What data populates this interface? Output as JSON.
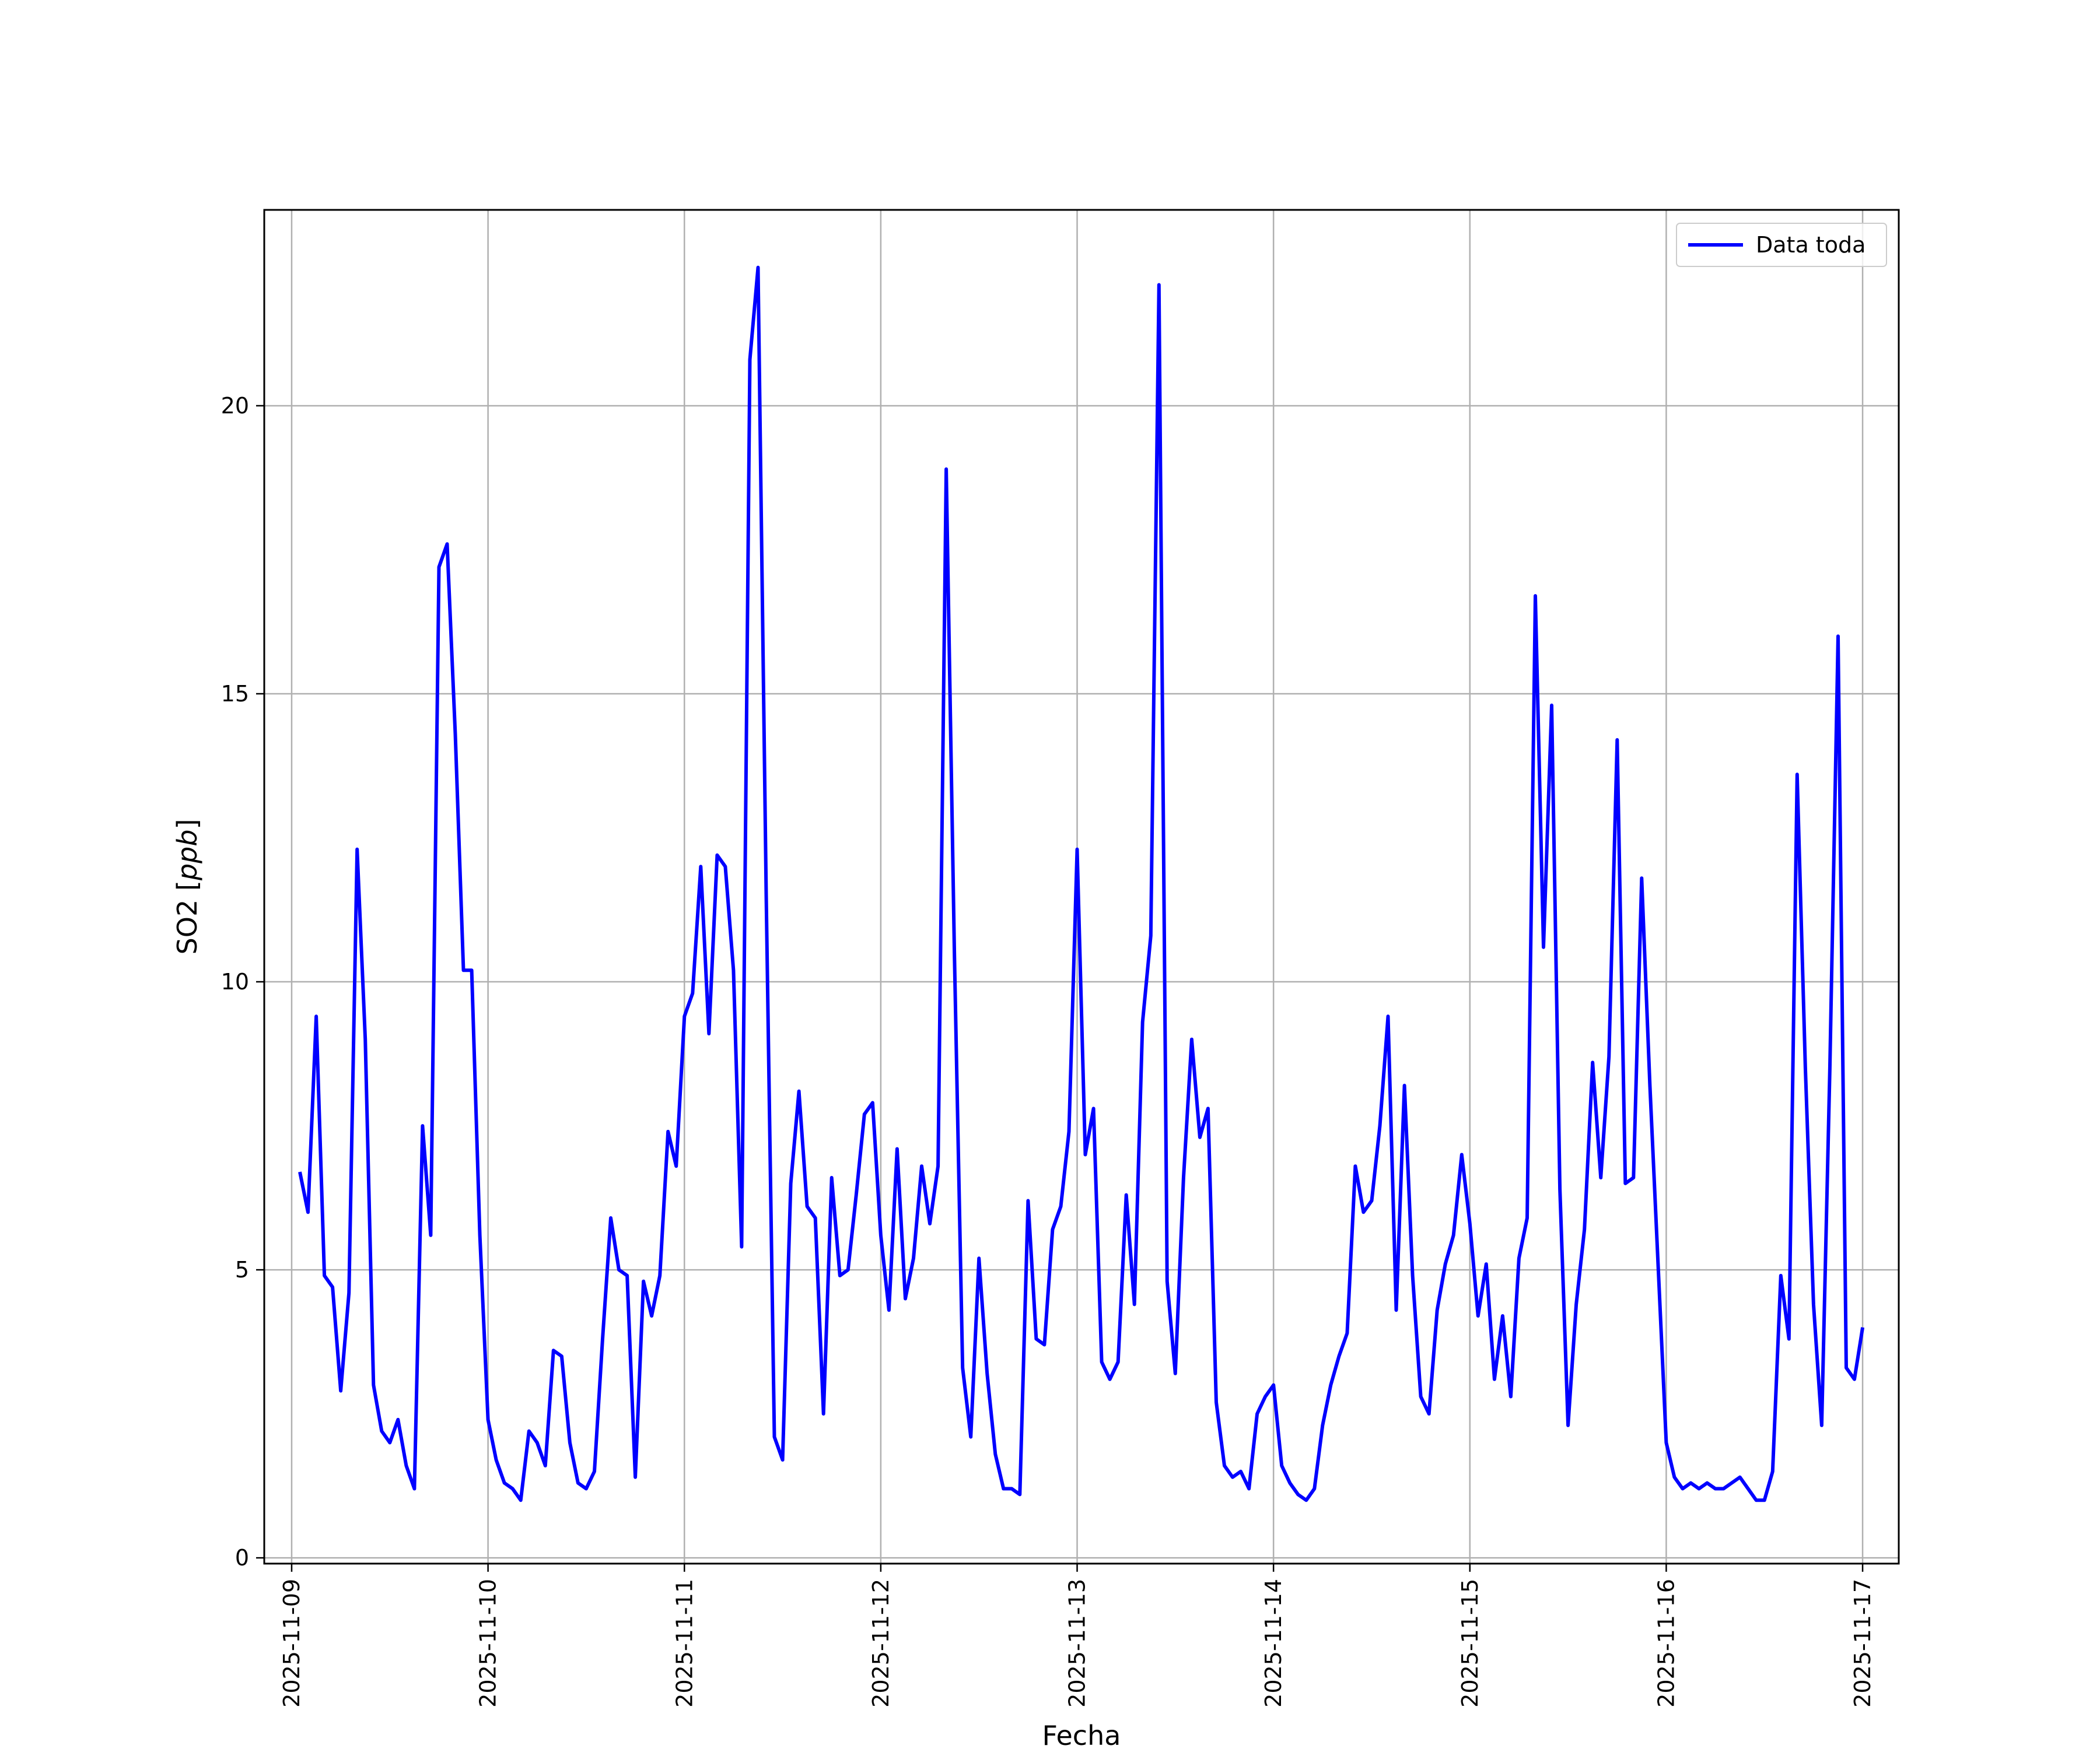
{
  "chart_data": {
    "type": "line",
    "xlabel": "Fecha",
    "ylabel_text": "SO2 ",
    "ylabel_unit": "ppb",
    "x_ticks": [
      "2025-11-09",
      "2025-11-10",
      "2025-11-11",
      "2025-11-12",
      "2025-11-13",
      "2025-11-14",
      "2025-11-15",
      "2025-11-16",
      "2025-11-17"
    ],
    "y_ticks": [
      "0",
      "5",
      "10",
      "15",
      "20"
    ],
    "xlim": [
      "2025-11-08T20:39",
      "2025-11-17T04:25"
    ],
    "ylim": [
      -0.1,
      23.4
    ],
    "grid": true,
    "legend_position": "top-right",
    "series": [
      {
        "name": "Data toda",
        "color": "#0000ff",
        "x": [
          "2025-11-09T01:00",
          "2025-11-09T02:00",
          "2025-11-09T03:00",
          "2025-11-09T04:00",
          "2025-11-09T05:00",
          "2025-11-09T06:00",
          "2025-11-09T07:00",
          "2025-11-09T08:00",
          "2025-11-09T09:00",
          "2025-11-09T10:00",
          "2025-11-09T11:00",
          "2025-11-09T12:00",
          "2025-11-09T13:00",
          "2025-11-09T14:00",
          "2025-11-09T15:00",
          "2025-11-09T16:00",
          "2025-11-09T17:00",
          "2025-11-09T18:00",
          "2025-11-09T19:00",
          "2025-11-09T20:00",
          "2025-11-09T21:00",
          "2025-11-09T22:00",
          "2025-11-09T23:00",
          "2025-11-10T00:00",
          "2025-11-10T01:00",
          "2025-11-10T02:00",
          "2025-11-10T03:00",
          "2025-11-10T04:00",
          "2025-11-10T05:00",
          "2025-11-10T06:00",
          "2025-11-10T07:00",
          "2025-11-10T08:00",
          "2025-11-10T09:00",
          "2025-11-10T10:00",
          "2025-11-10T11:00",
          "2025-11-10T12:00",
          "2025-11-10T13:00",
          "2025-11-10T14:00",
          "2025-11-10T15:00",
          "2025-11-10T16:00",
          "2025-11-10T17:00",
          "2025-11-10T18:00",
          "2025-11-10T19:00",
          "2025-11-10T20:00",
          "2025-11-10T21:00",
          "2025-11-10T22:00",
          "2025-11-10T23:00",
          "2025-11-11T00:00",
          "2025-11-11T01:00",
          "2025-11-11T02:00",
          "2025-11-11T03:00",
          "2025-11-11T04:00",
          "2025-11-11T05:00",
          "2025-11-11T06:00",
          "2025-11-11T07:00",
          "2025-11-11T08:00",
          "2025-11-11T09:00",
          "2025-11-11T10:00",
          "2025-11-11T11:00",
          "2025-11-11T12:00",
          "2025-11-11T13:00",
          "2025-11-11T14:00",
          "2025-11-11T15:00",
          "2025-11-11T16:00",
          "2025-11-11T17:00",
          "2025-11-11T18:00",
          "2025-11-11T19:00",
          "2025-11-11T20:00",
          "2025-11-11T21:00",
          "2025-11-11T22:00",
          "2025-11-11T23:00",
          "2025-11-12T00:00",
          "2025-11-12T01:00",
          "2025-11-12T02:00",
          "2025-11-12T03:00",
          "2025-11-12T04:00",
          "2025-11-12T05:00",
          "2025-11-12T06:00",
          "2025-11-12T07:00",
          "2025-11-12T08:00",
          "2025-11-12T09:00",
          "2025-11-12T10:00",
          "2025-11-12T11:00",
          "2025-11-12T12:00",
          "2025-11-12T13:00",
          "2025-11-12T14:00",
          "2025-11-12T15:00",
          "2025-11-12T16:00",
          "2025-11-12T17:00",
          "2025-11-12T18:00",
          "2025-11-12T19:00",
          "2025-11-12T20:00",
          "2025-11-12T21:00",
          "2025-11-12T22:00",
          "2025-11-12T23:00",
          "2025-11-13T00:00",
          "2025-11-13T01:00",
          "2025-11-13T02:00",
          "2025-11-13T03:00",
          "2025-11-13T04:00",
          "2025-11-13T05:00",
          "2025-11-13T06:00",
          "2025-11-13T07:00",
          "2025-11-13T08:00",
          "2025-11-13T09:00",
          "2025-11-13T10:00",
          "2025-11-13T11:00",
          "2025-11-13T12:00",
          "2025-11-13T13:00",
          "2025-11-13T14:00",
          "2025-11-13T15:00",
          "2025-11-13T16:00",
          "2025-11-13T17:00",
          "2025-11-13T18:00",
          "2025-11-13T19:00",
          "2025-11-13T20:00",
          "2025-11-13T21:00",
          "2025-11-13T22:00",
          "2025-11-13T23:00",
          "2025-11-14T00:00",
          "2025-11-14T01:00",
          "2025-11-14T02:00",
          "2025-11-14T03:00",
          "2025-11-14T04:00",
          "2025-11-14T05:00",
          "2025-11-14T06:00",
          "2025-11-14T07:00",
          "2025-11-14T08:00",
          "2025-11-14T09:00",
          "2025-11-14T10:00",
          "2025-11-14T11:00",
          "2025-11-14T12:00",
          "2025-11-14T13:00",
          "2025-11-14T14:00",
          "2025-11-14T15:00",
          "2025-11-14T16:00",
          "2025-11-14T17:00",
          "2025-11-14T18:00",
          "2025-11-14T19:00",
          "2025-11-14T20:00",
          "2025-11-14T21:00",
          "2025-11-14T22:00",
          "2025-11-14T23:00",
          "2025-11-15T00:00",
          "2025-11-15T01:00",
          "2025-11-15T02:00",
          "2025-11-15T03:00",
          "2025-11-15T04:00",
          "2025-11-15T05:00",
          "2025-11-15T06:00",
          "2025-11-15T07:00",
          "2025-11-15T08:00",
          "2025-11-15T09:00",
          "2025-11-15T10:00",
          "2025-11-15T11:00",
          "2025-11-15T12:00",
          "2025-11-15T13:00",
          "2025-11-15T14:00",
          "2025-11-15T15:00",
          "2025-11-15T16:00",
          "2025-11-15T17:00",
          "2025-11-15T18:00",
          "2025-11-15T19:00",
          "2025-11-15T20:00",
          "2025-11-15T21:00",
          "2025-11-15T22:00",
          "2025-11-15T23:00",
          "2025-11-16T00:00",
          "2025-11-16T01:00",
          "2025-11-16T02:00",
          "2025-11-16T03:00",
          "2025-11-16T04:00",
          "2025-11-16T05:00",
          "2025-11-16T06:00",
          "2025-11-16T07:00",
          "2025-11-16T08:00",
          "2025-11-16T09:00",
          "2025-11-16T10:00",
          "2025-11-16T11:00",
          "2025-11-16T12:00",
          "2025-11-16T13:00",
          "2025-11-16T14:00",
          "2025-11-16T15:00",
          "2025-11-16T16:00",
          "2025-11-16T17:00",
          "2025-11-16T18:00",
          "2025-11-16T19:00",
          "2025-11-16T20:00",
          "2025-11-16T21:00",
          "2025-11-16T22:00",
          "2025-11-16T23:00",
          "2025-11-17T00:00"
        ],
        "y": [
          6.7,
          6.0,
          9.4,
          4.9,
          4.7,
          2.9,
          4.6,
          12.3,
          9.0,
          3.0,
          2.2,
          2.0,
          2.4,
          1.6,
          1.2,
          7.5,
          5.6,
          17.2,
          17.6,
          14.3,
          10.2,
          10.2,
          5.6,
          2.4,
          1.7,
          1.3,
          1.2,
          1.0,
          2.2,
          2.0,
          1.6,
          3.6,
          3.5,
          2.0,
          1.3,
          1.2,
          1.5,
          3.8,
          5.9,
          5.0,
          4.9,
          1.4,
          4.8,
          4.2,
          4.9,
          7.4,
          6.8,
          9.4,
          9.8,
          12.0,
          9.1,
          12.2,
          12.0,
          10.2,
          5.4,
          20.8,
          22.4,
          11.5,
          2.1,
          1.7,
          6.5,
          8.1,
          6.1,
          5.9,
          2.5,
          6.6,
          4.9,
          5.0,
          6.3,
          7.7,
          7.9,
          5.6,
          4.3,
          7.1,
          4.5,
          5.2,
          6.8,
          5.8,
          6.8,
          18.9,
          10.5,
          3.3,
          2.1,
          5.2,
          3.2,
          1.8,
          1.2,
          1.2,
          1.1,
          6.2,
          3.8,
          3.7,
          5.7,
          6.1,
          7.4,
          12.3,
          7.0,
          7.8,
          3.4,
          3.1,
          3.4,
          6.3,
          4.4,
          9.3,
          10.8,
          22.1,
          4.8,
          3.2,
          6.6,
          9.0,
          7.3,
          7.8,
          2.7,
          1.6,
          1.4,
          1.5,
          1.2,
          2.5,
          2.8,
          3.0,
          1.6,
          1.3,
          1.1,
          1.0,
          1.2,
          2.3,
          3.0,
          3.5,
          3.9,
          6.8,
          6.0,
          6.2,
          7.5,
          9.4,
          4.3,
          8.2,
          4.9,
          2.8,
          2.5,
          4.3,
          5.1,
          5.6,
          7.0,
          5.8,
          4.2,
          5.1,
          3.1,
          4.2,
          2.8,
          5.2,
          5.9,
          16.7,
          10.6,
          14.8,
          6.4,
          2.3,
          4.4,
          5.7,
          8.6,
          6.6,
          8.7,
          14.2,
          6.5,
          6.6,
          11.8,
          8.2,
          5.1,
          2.0,
          1.4,
          1.2,
          1.3,
          1.2,
          1.3,
          1.2,
          1.2,
          1.3,
          1.4,
          1.2,
          1.0,
          1.0,
          1.5,
          4.9,
          3.8,
          13.6,
          8.5,
          4.4,
          2.3,
          8.5,
          16.0,
          3.3,
          3.1,
          4.0
        ]
      }
    ]
  }
}
